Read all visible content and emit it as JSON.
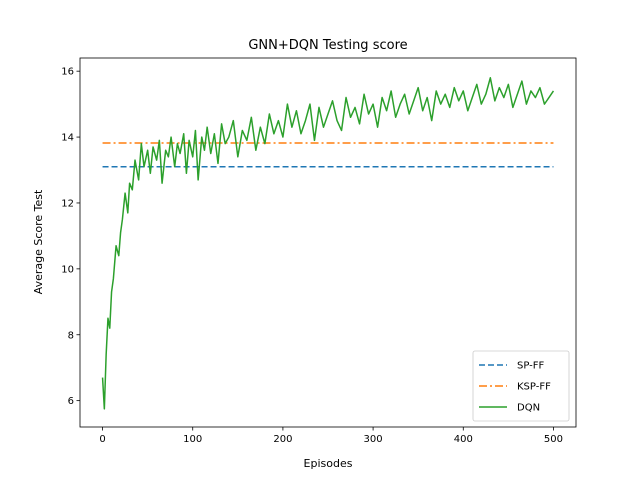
{
  "chart_data": {
    "type": "line",
    "title": "GNN+DQN Testing score",
    "xlabel": "Episodes",
    "ylabel": "Average Score Test",
    "xlim": [
      -25,
      525
    ],
    "ylim": [
      5.2,
      16.4
    ],
    "xticks": [
      0,
      100,
      200,
      300,
      400,
      500
    ],
    "yticks": [
      6,
      8,
      10,
      12,
      14,
      16
    ],
    "grid": false,
    "legend_position": "lower-right",
    "series": [
      {
        "name": "SP-FF",
        "style": "dashed",
        "color": "#1f77b4",
        "x": [
          0,
          500
        ],
        "y": [
          13.1,
          13.1
        ]
      },
      {
        "name": "KSP-FF",
        "style": "dashdot",
        "color": "#ff7f0e",
        "x": [
          0,
          500
        ],
        "y": [
          13.82,
          13.82
        ]
      },
      {
        "name": "DQN",
        "style": "solid",
        "color": "#2ca02c",
        "x": [
          0,
          2,
          4,
          6,
          8,
          10,
          12,
          15,
          18,
          20,
          22,
          25,
          28,
          30,
          33,
          36,
          40,
          43,
          46,
          50,
          53,
          56,
          60,
          63,
          66,
          70,
          73,
          76,
          80,
          83,
          86,
          90,
          93,
          96,
          100,
          103,
          106,
          110,
          113,
          116,
          120,
          124,
          128,
          132,
          136,
          140,
          145,
          150,
          155,
          160,
          165,
          170,
          175,
          180,
          185,
          190,
          195,
          200,
          205,
          210,
          215,
          220,
          225,
          230,
          235,
          240,
          245,
          250,
          255,
          260,
          265,
          270,
          275,
          280,
          285,
          290,
          295,
          300,
          305,
          310,
          315,
          320,
          325,
          330,
          335,
          340,
          345,
          350,
          355,
          360,
          365,
          370,
          375,
          380,
          385,
          390,
          395,
          400,
          405,
          410,
          415,
          420,
          425,
          430,
          435,
          440,
          445,
          450,
          455,
          460,
          465,
          470,
          475,
          480,
          485,
          490,
          495,
          500
        ],
        "y": [
          6.7,
          5.75,
          7.4,
          8.5,
          8.2,
          9.3,
          9.7,
          10.7,
          10.4,
          11.1,
          11.5,
          12.3,
          11.7,
          12.6,
          12.4,
          13.3,
          12.7,
          13.8,
          13.1,
          13.6,
          12.9,
          13.7,
          13.3,
          13.9,
          12.6,
          13.6,
          13.4,
          14.0,
          13.1,
          13.8,
          13.5,
          14.1,
          12.9,
          13.9,
          13.4,
          14.2,
          12.7,
          14.0,
          13.6,
          14.3,
          13.5,
          14.1,
          13.2,
          14.4,
          13.8,
          14.0,
          14.5,
          13.4,
          14.2,
          13.9,
          14.6,
          13.6,
          14.3,
          13.8,
          14.7,
          14.1,
          14.5,
          14.0,
          15.0,
          14.3,
          14.8,
          14.1,
          14.5,
          15.0,
          13.9,
          14.9,
          14.3,
          14.7,
          15.1,
          14.5,
          14.2,
          15.2,
          14.6,
          14.9,
          14.4,
          15.3,
          14.7,
          15.0,
          14.3,
          15.2,
          14.8,
          15.4,
          14.6,
          15.0,
          15.3,
          14.7,
          15.1,
          15.5,
          14.8,
          15.2,
          14.5,
          15.4,
          15.0,
          15.3,
          14.9,
          15.5,
          15.1,
          15.4,
          14.8,
          15.2,
          15.6,
          15.0,
          15.3,
          15.8,
          15.1,
          15.5,
          15.2,
          15.6,
          14.9,
          15.3,
          15.7,
          15.0,
          15.4,
          15.2,
          15.5,
          15.0,
          15.2,
          15.4
        ]
      }
    ]
  }
}
